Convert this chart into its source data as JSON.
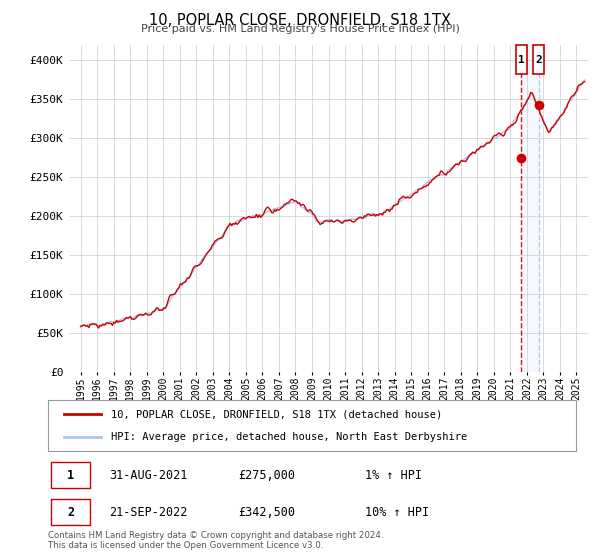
{
  "title": "10, POPLAR CLOSE, DRONFIELD, S18 1TX",
  "subtitle": "Price paid vs. HM Land Registry's House Price Index (HPI)",
  "legend_line1": "10, POPLAR CLOSE, DRONFIELD, S18 1TX (detached house)",
  "legend_line2": "HPI: Average price, detached house, North East Derbyshire",
  "annotation_footer": "Contains HM Land Registry data © Crown copyright and database right 2024.\nThis data is licensed under the Open Government Licence v3.0.",
  "transaction1_date": "31-AUG-2021",
  "transaction1_price": "£275,000",
  "transaction1_hpi": "1% ↑ HPI",
  "transaction2_date": "21-SEP-2022",
  "transaction2_price": "£342,500",
  "transaction2_hpi": "10% ↑ HPI",
  "hpi_line_color": "#aec6e8",
  "price_line_color": "#cc0000",
  "marker_color": "#cc0000",
  "vline1_color": "#cc0000",
  "vline2_color": "#aec6e8",
  "highlight_color": "#ddeeff",
  "ylim": [
    0,
    420000
  ],
  "yticks": [
    0,
    50000,
    100000,
    150000,
    200000,
    250000,
    300000,
    350000,
    400000
  ],
  "xtick_years": [
    1995,
    1996,
    1997,
    1998,
    1999,
    2000,
    2001,
    2002,
    2003,
    2004,
    2005,
    2006,
    2007,
    2008,
    2009,
    2010,
    2011,
    2012,
    2013,
    2014,
    2015,
    2016,
    2017,
    2018,
    2019,
    2020,
    2021,
    2022,
    2023,
    2024,
    2025
  ],
  "transaction1_x": 2021.667,
  "transaction2_x": 2022.722,
  "transaction1_y": 275000,
  "transaction2_y": 342500,
  "xlim_left": 1994.3,
  "xlim_right": 2025.7
}
